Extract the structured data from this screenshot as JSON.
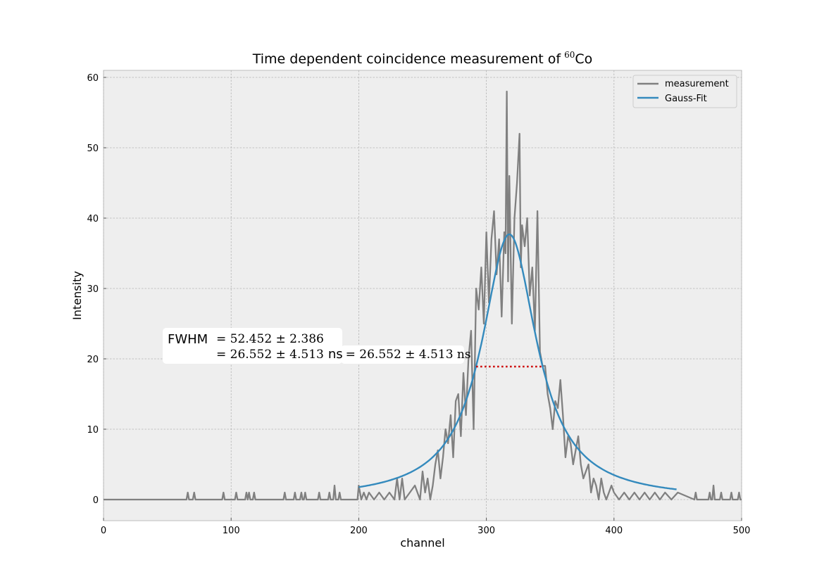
{
  "chart_data": {
    "type": "line",
    "title": "Time dependent coincidence measurement of",
    "title_isotope_mass": "60",
    "title_element": "Co",
    "xlabel": "channel",
    "ylabel": "Intensity",
    "xlim": [
      0,
      500
    ],
    "ylim": [
      -3,
      61
    ],
    "x_ticks": [
      0,
      100,
      200,
      300,
      400,
      500
    ],
    "y_ticks": [
      0,
      10,
      20,
      30,
      40,
      50,
      60
    ],
    "grid": true,
    "legend_position": "top-right",
    "colors": {
      "measurement": "#808080",
      "fit": "#348abd",
      "fwhm": "#cc0000",
      "plot_bg": "#eeeeee"
    },
    "series": [
      {
        "name": "measurement",
        "sparse_peaks": [
          [
            66,
            1
          ],
          [
            71,
            1
          ],
          [
            94,
            1
          ],
          [
            104,
            1
          ],
          [
            112,
            1
          ],
          [
            114,
            1
          ],
          [
            118,
            1
          ],
          [
            142,
            1
          ],
          [
            150,
            1
          ],
          [
            155,
            1
          ],
          [
            158,
            1
          ],
          [
            169,
            1
          ],
          [
            177,
            1
          ],
          [
            181,
            2
          ],
          [
            185,
            1
          ],
          [
            464,
            1
          ],
          [
            475,
            1
          ],
          [
            478,
            2
          ],
          [
            484,
            1
          ],
          [
            492,
            1
          ],
          [
            498,
            1
          ]
        ],
        "segment": {
          "x": [
            0,
            199,
            200,
            202,
            204,
            206,
            208,
            212,
            216,
            220,
            224,
            228,
            230,
            232,
            234,
            236,
            240,
            244,
            248,
            250,
            252,
            254,
            256,
            258,
            260,
            262,
            264,
            266,
            268,
            270,
            272,
            274,
            276,
            278,
            280,
            282,
            284,
            286,
            288,
            290,
            292,
            294,
            296,
            298,
            300,
            302,
            304,
            306,
            308,
            310,
            312,
            314,
            315,
            316,
            317,
            318,
            320,
            322,
            324,
            326,
            327,
            328,
            330,
            332,
            334,
            336,
            338,
            340,
            342,
            344,
            346,
            348,
            350,
            352,
            354,
            356,
            358,
            360,
            362,
            364,
            366,
            368,
            370,
            372,
            374,
            376,
            378,
            380,
            382,
            384,
            386,
            388,
            390,
            392,
            394,
            396,
            398,
            400,
            404,
            408,
            412,
            416,
            420,
            424,
            428,
            432,
            436,
            440,
            445,
            450,
            500
          ],
          "y": [
            0,
            0,
            2,
            0,
            1,
            0,
            1,
            0,
            1,
            0,
            1,
            0,
            3,
            0,
            3,
            0,
            1,
            2,
            0,
            4,
            1,
            3,
            0,
            2,
            5,
            7,
            3,
            6,
            10,
            8,
            12,
            6,
            14,
            15,
            9,
            18,
            12,
            20,
            24,
            10,
            30,
            27,
            33,
            25,
            38,
            28,
            37,
            41,
            32,
            37,
            26,
            38,
            35,
            58,
            31,
            46,
            25,
            40,
            45,
            52,
            33,
            39,
            36,
            40,
            29,
            33,
            24,
            41,
            21,
            19,
            19,
            15,
            13,
            10,
            14,
            13,
            17,
            12,
            6,
            9,
            8,
            5,
            7,
            9,
            5,
            3,
            4,
            5,
            1,
            3,
            2,
            0,
            3,
            1,
            0,
            1,
            2,
            1,
            0,
            1,
            0,
            1,
            0,
            1,
            0,
            1,
            0,
            1,
            0,
            1,
            0
          ]
        }
      },
      {
        "name": "Gauss-Fit",
        "x_range": [
          200,
          449
        ],
        "peak_center": 318,
        "peak_height": 37.7,
        "half_width_at_half_max": 26.2,
        "shape": "lorentzian"
      }
    ],
    "fwhm_line": {
      "x": [
        292,
        344
      ],
      "y": 18.9
    },
    "annotation": {
      "label": "FWHM",
      "line1": "= 52.452 ± 2.386",
      "line2_prefix": "= 26.552 ± 4.513",
      "line2_unit": "ns",
      "line2_suffix": "= 26.552 ± 4.513 ns"
    }
  }
}
